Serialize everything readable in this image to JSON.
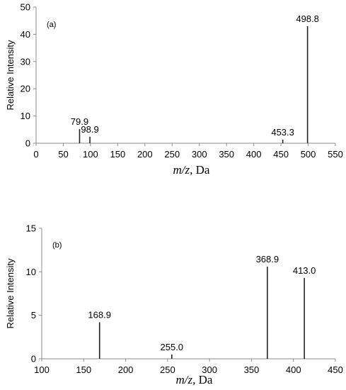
{
  "chart_data": [
    {
      "type": "bar",
      "panel_label": "(a)",
      "ylabel": "Relative Intensity",
      "xlabel_italic": "m/z",
      "xlabel_rest": ", Da",
      "xlim": [
        0,
        550
      ],
      "ylim": [
        0,
        50
      ],
      "xticks": [
        0,
        50,
        100,
        150,
        200,
        250,
        300,
        350,
        400,
        450,
        500,
        550
      ],
      "yticks": [
        0,
        10,
        20,
        30,
        40,
        50
      ],
      "peaks": [
        {
          "x": 79.9,
          "y": 5.2,
          "label": "79.9"
        },
        {
          "x": 98.9,
          "y": 2.4,
          "label": "98.9"
        },
        {
          "x": 453.3,
          "y": 1.3,
          "label": "453.3"
        },
        {
          "x": 498.8,
          "y": 43.0,
          "label": "498.8"
        }
      ],
      "grid": false
    },
    {
      "type": "bar",
      "panel_label": "(b)",
      "ylabel": "Relative Intensity",
      "xlabel_italic": "m/z",
      "xlabel_rest": ", Da",
      "xlim": [
        100,
        450
      ],
      "ylim": [
        0,
        15
      ],
      "xticks": [
        100,
        150,
        200,
        250,
        300,
        350,
        400,
        450
      ],
      "yticks": [
        0,
        5,
        10,
        15
      ],
      "peaks": [
        {
          "x": 168.9,
          "y": 4.2,
          "label": "168.9"
        },
        {
          "x": 255.0,
          "y": 0.5,
          "label": "255.0"
        },
        {
          "x": 368.9,
          "y": 10.6,
          "label": "368.9"
        },
        {
          "x": 413.0,
          "y": 9.3,
          "label": "413.0"
        }
      ],
      "grid": false
    }
  ]
}
